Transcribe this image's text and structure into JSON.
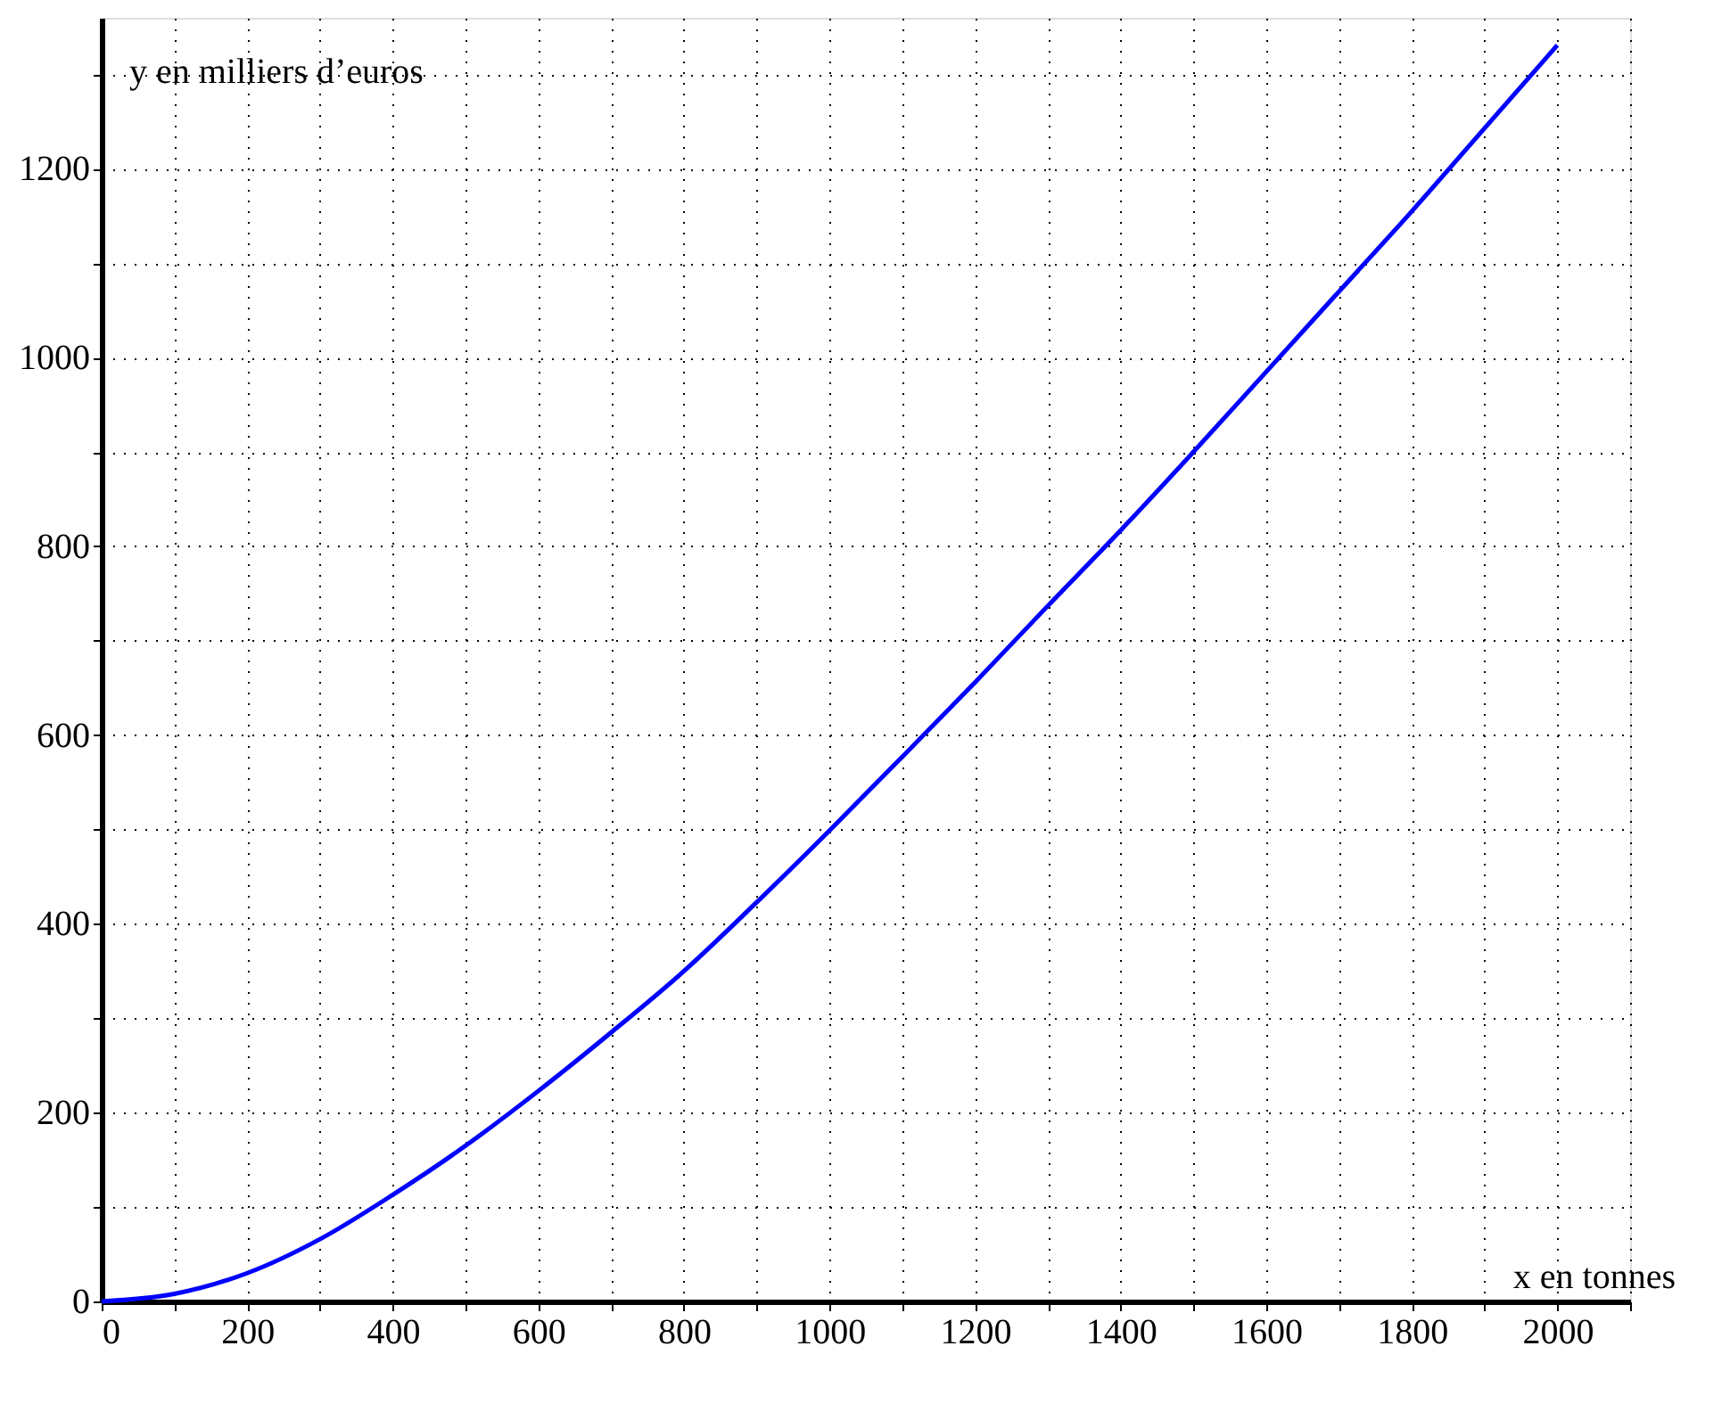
{
  "chart_data": {
    "type": "line",
    "xlabel": "x en tonnes",
    "ylabel": "y en milliers d’euros",
    "x": [
      0,
      100,
      200,
      300,
      400,
      500,
      600,
      700,
      800,
      900,
      1000,
      1100,
      1200,
      1300,
      1400,
      1500,
      1600,
      1700,
      1800,
      1900,
      2000
    ],
    "series": [
      {
        "color": "#0000ff",
        "values": [
          0,
          8,
          30,
          66,
          113,
          165,
          223,
          285,
          350,
          423,
          499,
          577,
          656,
          737,
          817,
          900,
          985,
          1070,
          1155,
          1243,
          1331
        ]
      }
    ],
    "xlim": [
      0,
      2100
    ],
    "ylim": [
      0,
      1360
    ],
    "xticks": [
      0,
      {
        "value": 100,
        "label": null
      },
      200,
      {
        "value": 300,
        "label": null
      },
      400,
      {
        "value": 500,
        "label": null
      },
      600,
      {
        "value": 700,
        "label": null
      },
      800,
      {
        "value": 900,
        "label": null
      },
      1000,
      {
        "value": 1100,
        "label": null
      },
      1200,
      {
        "value": 1300,
        "label": null
      },
      1400,
      {
        "value": 1500,
        "label": null
      },
      1600,
      {
        "value": 1700,
        "label": null
      },
      1800,
      {
        "value": 1900,
        "label": null
      },
      2000,
      {
        "value": 2100,
        "label": null
      }
    ],
    "yticks": [
      0,
      {
        "value": 100,
        "label": null
      },
      200,
      {
        "value": 300,
        "label": null
      },
      400,
      {
        "value": 500,
        "label": null
      },
      600,
      {
        "value": 700,
        "label": null
      },
      800,
      {
        "value": 900,
        "label": null
      },
      1000,
      {
        "value": 1100,
        "label": null
      },
      1200,
      {
        "value": 1300,
        "label": null
      }
    ],
    "grid": true,
    "marker": "none",
    "line_style": "solid"
  }
}
